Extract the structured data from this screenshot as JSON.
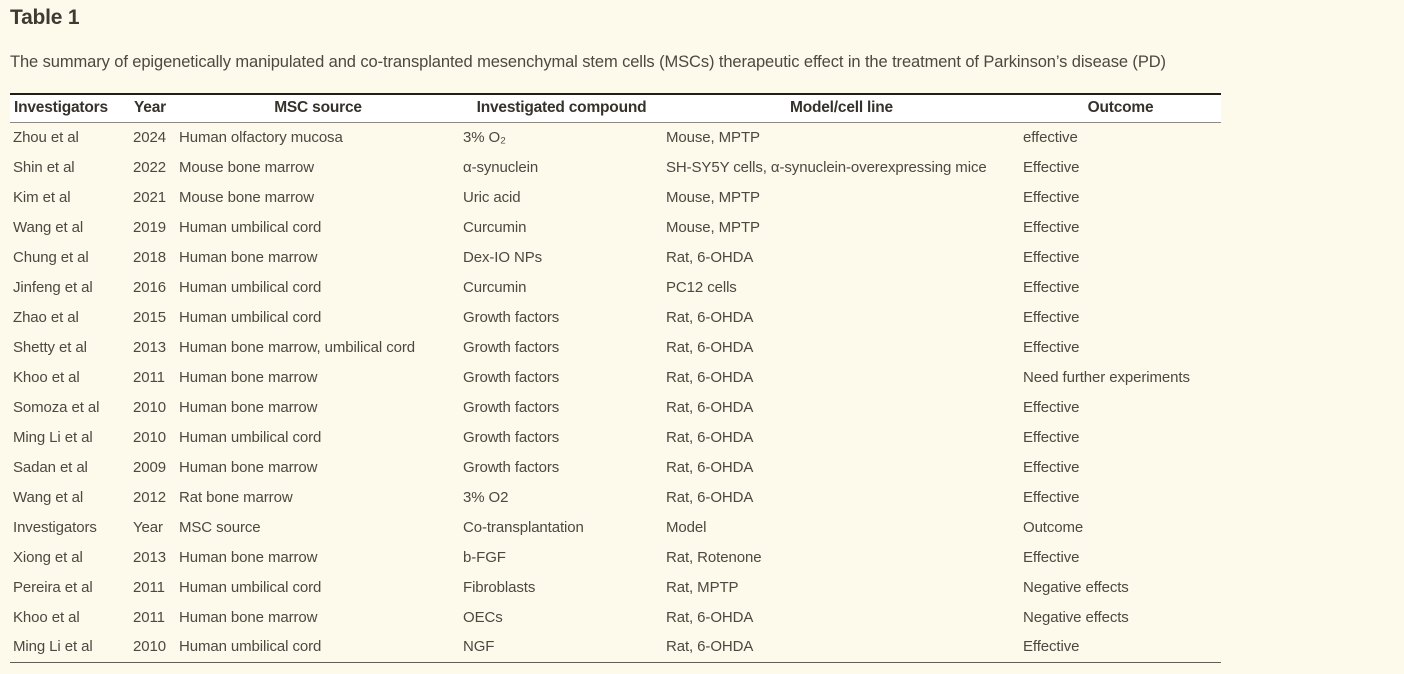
{
  "page": {
    "title": "Table 1",
    "caption": "The summary of epigenetically manipulated and co-transplanted mesenchymal stem cells (MSCs) therapeutic effect in the treatment of Parkinson’s disease (PD)"
  },
  "table": {
    "columns": [
      "Investigators",
      "Year",
      "MSC source",
      "Investigated compound",
      "Model/cell line",
      "Outcome"
    ],
    "rows": [
      [
        "Zhou et al",
        "2024",
        "Human olfactory mucosa",
        "3% O₂",
        "Mouse, MPTP",
        "effective"
      ],
      [
        "Shin et al",
        "2022",
        "Mouse bone marrow",
        "α-synuclein",
        "SH-SY5Y cells, α-synuclein-overexpressing mice",
        "Effective"
      ],
      [
        "Kim et al",
        "2021",
        "Mouse bone marrow",
        "Uric acid",
        "Mouse, MPTP",
        "Effective"
      ],
      [
        "Wang et al",
        "2019",
        "Human umbilical cord",
        "Curcumin",
        "Mouse, MPTP",
        "Effective"
      ],
      [
        "Chung et al",
        "2018",
        "Human bone marrow",
        "Dex-IO NPs",
        "Rat, 6-OHDA",
        "Effective"
      ],
      [
        "Jinfeng et al",
        "2016",
        "Human umbilical cord",
        "Curcumin",
        "PC12 cells",
        "Effective"
      ],
      [
        "Zhao et al",
        "2015",
        "Human umbilical cord",
        "Growth factors",
        "Rat, 6-OHDA",
        "Effective"
      ],
      [
        "Shetty et al",
        "2013",
        "Human bone marrow, umbilical cord",
        "Growth factors",
        "Rat, 6-OHDA",
        "Effective"
      ],
      [
        "Khoo et al",
        "2011",
        "Human bone marrow",
        "Growth factors",
        "Rat, 6-OHDA",
        "Need further experiments"
      ],
      [
        "Somoza et al",
        "2010",
        "Human bone marrow",
        "Growth factors",
        "Rat, 6-OHDA",
        "Effective"
      ],
      [
        "Ming Li et al",
        "2010",
        "Human umbilical cord",
        "Growth factors",
        "Rat, 6-OHDA",
        "Effective"
      ],
      [
        "Sadan et al",
        "2009",
        "Human bone marrow",
        "Growth factors",
        "Rat, 6-OHDA",
        "Effective"
      ],
      [
        "Wang et al",
        "2012",
        "Rat bone marrow",
        "3% O2",
        "Rat, 6-OHDA",
        "Effective"
      ],
      [
        "Investigators",
        "Year",
        "MSC source",
        "Co-transplantation",
        "Model",
        "Outcome"
      ],
      [
        "Xiong et al",
        "2013",
        "Human bone marrow",
        "b-FGF",
        "Rat, Rotenone",
        "Effective"
      ],
      [
        "Pereira et al",
        "2011",
        "Human umbilical cord",
        "Fibroblasts",
        "Rat, MPTP",
        "Negative effects"
      ],
      [
        "Khoo et al",
        "2011",
        "Human bone marrow",
        "OECs",
        "Rat, 6-OHDA",
        "Negative effects"
      ],
      [
        "Ming Li et al",
        "2010",
        "Human umbilical cord",
        "NGF",
        "Rat, 6-OHDA",
        "Effective"
      ]
    ]
  },
  "colors": {
    "page_background": "#fdfaec",
    "header_background": "#ffffff",
    "text": "#4b4940",
    "heading_text": "#3d3b33",
    "table_top_border": "#1f1e1b",
    "header_underline": "#8d8a80",
    "table_bottom_border": "#615e55"
  }
}
